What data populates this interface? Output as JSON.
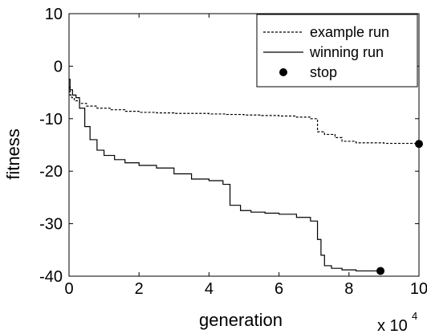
{
  "chart_data": {
    "type": "line",
    "xlabel": "generation",
    "ylabel": "fitness",
    "x_multiplier_label": "x 10",
    "x_multiplier_exponent": "4",
    "xlim": [
      0,
      10
    ],
    "ylim": [
      -40,
      10
    ],
    "xticks": [
      "0",
      "2",
      "4",
      "6",
      "8",
      "10"
    ],
    "yticks": [
      "-40",
      "-30",
      "-20",
      "-10",
      "0",
      "10"
    ],
    "grid": false,
    "legend_position": "top-right",
    "series": [
      {
        "name": "example run",
        "style": "dashed",
        "color": "#000000",
        "x": [
          0.0,
          0.03,
          0.08,
          0.15,
          0.3,
          0.5,
          0.8,
          1.2,
          1.6,
          2.0,
          2.5,
          3.0,
          3.5,
          4.0,
          4.5,
          5.0,
          5.5,
          6.0,
          6.5,
          6.9,
          7.1,
          7.3,
          7.6,
          7.8,
          8.2,
          9.0,
          10.0
        ],
        "y": [
          -4.0,
          -5.5,
          -6.0,
          -6.6,
          -7.1,
          -7.6,
          -8.0,
          -8.3,
          -8.6,
          -8.8,
          -8.9,
          -9.0,
          -9.0,
          -9.1,
          -9.2,
          -9.3,
          -9.4,
          -9.5,
          -9.7,
          -10.0,
          -12.5,
          -13.0,
          -13.6,
          -14.3,
          -14.6,
          -14.7,
          -14.8
        ]
      },
      {
        "name": "winning run",
        "style": "solid",
        "color": "#000000",
        "x": [
          0.0,
          0.03,
          0.1,
          0.2,
          0.3,
          0.45,
          0.6,
          0.8,
          1.0,
          1.3,
          1.6,
          2.0,
          2.5,
          3.0,
          3.5,
          4.0,
          4.4,
          4.6,
          4.9,
          5.2,
          5.6,
          6.0,
          6.5,
          6.9,
          7.1,
          7.2,
          7.3,
          7.5,
          7.8,
          8.2,
          8.8
        ],
        "y": [
          -2.5,
          -4.5,
          -5.5,
          -6.0,
          -8.0,
          -11.5,
          -14.0,
          -16.0,
          -17.0,
          -17.8,
          -18.4,
          -18.9,
          -19.4,
          -20.5,
          -21.5,
          -21.8,
          -22.5,
          -26.5,
          -27.5,
          -27.8,
          -28.0,
          -28.2,
          -28.8,
          -29.5,
          -33.0,
          -36.0,
          -38.0,
          -38.5,
          -38.8,
          -39.0,
          -39.0
        ]
      }
    ],
    "stop_points": {
      "name": "stop",
      "marker": "circle",
      "x": [
        10.0,
        8.9
      ],
      "y": [
        -14.8,
        -39.0
      ]
    }
  }
}
